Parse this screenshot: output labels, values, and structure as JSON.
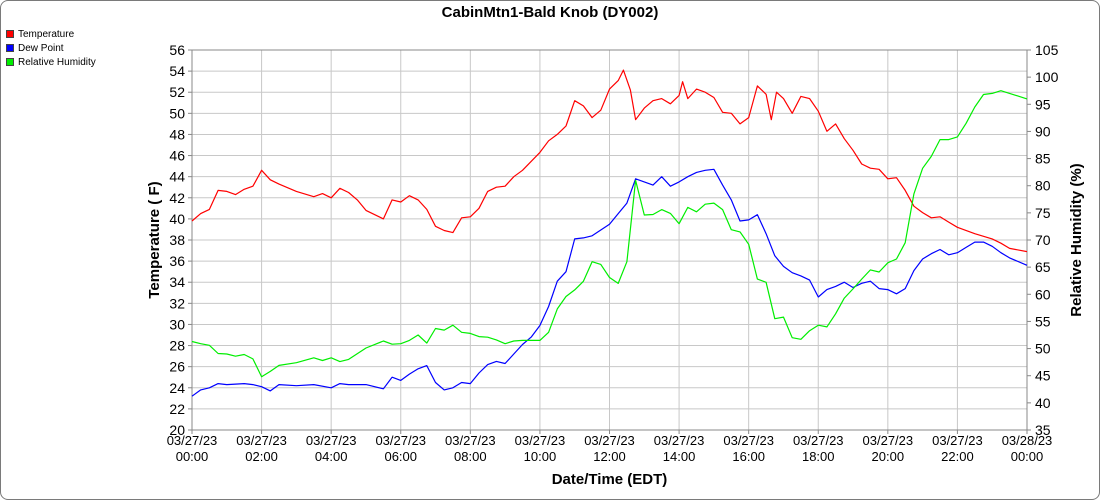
{
  "chart_data": {
    "type": "line",
    "title": "CabinMtn1-Bald Knob (DY002)",
    "xlabel": "Date/Time (EDT)",
    "ylabel_left": "Temperature ( F)",
    "ylabel_right": "Relative Humidity (%)",
    "x_unit": "hours since 03/27/23 00:00 (EDT)",
    "xlim": [
      0,
      24
    ],
    "ylim_left": [
      20,
      56
    ],
    "ylim_right": [
      35,
      105
    ],
    "grid": true,
    "legend_position": "top-left",
    "x_tick_labels": [
      {
        "date": "03/27/23",
        "time": "00:00"
      },
      {
        "date": "03/27/23",
        "time": "02:00"
      },
      {
        "date": "03/27/23",
        "time": "04:00"
      },
      {
        "date": "03/27/23",
        "time": "06:00"
      },
      {
        "date": "03/27/23",
        "time": "08:00"
      },
      {
        "date": "03/27/23",
        "time": "10:00"
      },
      {
        "date": "03/27/23",
        "time": "12:00"
      },
      {
        "date": "03/27/23",
        "time": "14:00"
      },
      {
        "date": "03/27/23",
        "time": "16:00"
      },
      {
        "date": "03/27/23",
        "time": "18:00"
      },
      {
        "date": "03/27/23",
        "time": "20:00"
      },
      {
        "date": "03/27/23",
        "time": "22:00"
      },
      {
        "date": "03/28/23",
        "time": "00:00"
      }
    ],
    "y_left_ticks": [
      20,
      22,
      24,
      26,
      28,
      30,
      32,
      34,
      36,
      38,
      40,
      42,
      44,
      46,
      48,
      50,
      52,
      54,
      56
    ],
    "y_right_ticks": [
      35,
      40,
      45,
      50,
      55,
      60,
      65,
      70,
      75,
      80,
      85,
      90,
      95,
      100,
      105
    ],
    "series": [
      {
        "name": "Temperature",
        "axis": "left",
        "color": "#ff0000",
        "points": [
          [
            0,
            39.8
          ],
          [
            0.25,
            40.5
          ],
          [
            0.5,
            40.9
          ],
          [
            0.75,
            42.7
          ],
          [
            1,
            42.6
          ],
          [
            1.25,
            42.3
          ],
          [
            1.5,
            42.8
          ],
          [
            1.75,
            43.1
          ],
          [
            2,
            44.6
          ],
          [
            2.25,
            43.7
          ],
          [
            2.5,
            43.3
          ],
          [
            3,
            42.6
          ],
          [
            3.5,
            42.1
          ],
          [
            3.75,
            42.4
          ],
          [
            4,
            42.0
          ],
          [
            4.25,
            42.9
          ],
          [
            4.5,
            42.5
          ],
          [
            4.75,
            41.8
          ],
          [
            5,
            40.8
          ],
          [
            5.5,
            40.0
          ],
          [
            5.75,
            41.8
          ],
          [
            6,
            41.6
          ],
          [
            6.25,
            42.2
          ],
          [
            6.5,
            41.8
          ],
          [
            6.75,
            40.9
          ],
          [
            7,
            39.3
          ],
          [
            7.25,
            38.9
          ],
          [
            7.5,
            38.7
          ],
          [
            7.75,
            40.1
          ],
          [
            8,
            40.2
          ],
          [
            8.25,
            41.0
          ],
          [
            8.5,
            42.6
          ],
          [
            8.75,
            43.0
          ],
          [
            9,
            43.1
          ],
          [
            9.25,
            44.0
          ],
          [
            9.5,
            44.6
          ],
          [
            10,
            46.3
          ],
          [
            10.25,
            47.4
          ],
          [
            10.5,
            48.0
          ],
          [
            10.75,
            48.8
          ],
          [
            11,
            51.2
          ],
          [
            11.25,
            50.7
          ],
          [
            11.5,
            49.6
          ],
          [
            11.75,
            50.3
          ],
          [
            12,
            52.3
          ],
          [
            12.25,
            53.1
          ],
          [
            12.4,
            54.1
          ],
          [
            12.6,
            52.2
          ],
          [
            12.75,
            49.4
          ],
          [
            13,
            50.5
          ],
          [
            13.25,
            51.2
          ],
          [
            13.5,
            51.4
          ],
          [
            13.75,
            50.9
          ],
          [
            14,
            51.7
          ],
          [
            14.1,
            53.0
          ],
          [
            14.25,
            51.4
          ],
          [
            14.5,
            52.3
          ],
          [
            14.75,
            52.0
          ],
          [
            15,
            51.5
          ],
          [
            15.25,
            50.1
          ],
          [
            15.5,
            50.0
          ],
          [
            15.75,
            49.0
          ],
          [
            16,
            49.6
          ],
          [
            16.25,
            52.6
          ],
          [
            16.5,
            51.8
          ],
          [
            16.65,
            49.4
          ],
          [
            16.8,
            52.0
          ],
          [
            17,
            51.4
          ],
          [
            17.25,
            50.0
          ],
          [
            17.5,
            51.6
          ],
          [
            17.75,
            51.4
          ],
          [
            18,
            50.2
          ],
          [
            18.25,
            48.3
          ],
          [
            18.5,
            49.0
          ],
          [
            18.75,
            47.6
          ],
          [
            19,
            46.5
          ],
          [
            19.25,
            45.2
          ],
          [
            19.5,
            44.8
          ],
          [
            19.75,
            44.7
          ],
          [
            20,
            43.8
          ],
          [
            20.25,
            43.9
          ],
          [
            20.5,
            42.7
          ],
          [
            20.75,
            41.2
          ],
          [
            21,
            40.6
          ],
          [
            21.25,
            40.1
          ],
          [
            21.5,
            40.2
          ],
          [
            21.75,
            39.7
          ],
          [
            22,
            39.2
          ],
          [
            22.5,
            38.6
          ],
          [
            23,
            38.1
          ],
          [
            23.25,
            37.7
          ],
          [
            23.5,
            37.2
          ],
          [
            24,
            36.9
          ]
        ]
      },
      {
        "name": "Dew Point",
        "axis": "left",
        "color": "#0000ff",
        "points": [
          [
            0,
            23.2
          ],
          [
            0.25,
            23.8
          ],
          [
            0.5,
            24.0
          ],
          [
            0.75,
            24.4
          ],
          [
            1,
            24.3
          ],
          [
            1.5,
            24.4
          ],
          [
            1.75,
            24.3
          ],
          [
            2,
            24.1
          ],
          [
            2.25,
            23.7
          ],
          [
            2.5,
            24.3
          ],
          [
            3,
            24.2
          ],
          [
            3.5,
            24.3
          ],
          [
            4,
            24.0
          ],
          [
            4.25,
            24.4
          ],
          [
            4.5,
            24.3
          ],
          [
            5,
            24.3
          ],
          [
            5.5,
            23.9
          ],
          [
            5.75,
            25.0
          ],
          [
            6,
            24.7
          ],
          [
            6.25,
            25.3
          ],
          [
            6.5,
            25.8
          ],
          [
            6.75,
            26.1
          ],
          [
            7,
            24.5
          ],
          [
            7.25,
            23.8
          ],
          [
            7.5,
            24.0
          ],
          [
            7.75,
            24.5
          ],
          [
            8,
            24.4
          ],
          [
            8.25,
            25.4
          ],
          [
            8.5,
            26.2
          ],
          [
            8.75,
            26.5
          ],
          [
            9,
            26.3
          ],
          [
            9.25,
            27.2
          ],
          [
            9.5,
            28.1
          ],
          [
            9.75,
            28.8
          ],
          [
            10,
            29.9
          ],
          [
            10.25,
            31.7
          ],
          [
            10.5,
            34.1
          ],
          [
            10.75,
            35.0
          ],
          [
            11,
            38.1
          ],
          [
            11.25,
            38.2
          ],
          [
            11.5,
            38.4
          ],
          [
            12,
            39.5
          ],
          [
            12.25,
            40.5
          ],
          [
            12.5,
            41.5
          ],
          [
            12.75,
            43.8
          ],
          [
            13,
            43.5
          ],
          [
            13.25,
            43.2
          ],
          [
            13.5,
            44.0
          ],
          [
            13.75,
            43.1
          ],
          [
            14,
            43.5
          ],
          [
            14.25,
            44.0
          ],
          [
            14.5,
            44.4
          ],
          [
            14.75,
            44.6
          ],
          [
            15,
            44.7
          ],
          [
            15.25,
            43.2
          ],
          [
            15.5,
            41.8
          ],
          [
            15.75,
            39.8
          ],
          [
            16,
            39.9
          ],
          [
            16.25,
            40.4
          ],
          [
            16.5,
            38.6
          ],
          [
            16.75,
            36.5
          ],
          [
            17,
            35.5
          ],
          [
            17.25,
            34.9
          ],
          [
            17.5,
            34.6
          ],
          [
            17.75,
            34.2
          ],
          [
            18,
            32.6
          ],
          [
            18.25,
            33.3
          ],
          [
            18.5,
            33.6
          ],
          [
            18.75,
            34.0
          ],
          [
            19,
            33.5
          ],
          [
            19.25,
            33.9
          ],
          [
            19.5,
            34.1
          ],
          [
            19.75,
            33.4
          ],
          [
            20,
            33.3
          ],
          [
            20.25,
            32.9
          ],
          [
            20.5,
            33.4
          ],
          [
            20.75,
            35.1
          ],
          [
            21,
            36.2
          ],
          [
            21.25,
            36.7
          ],
          [
            21.5,
            37.1
          ],
          [
            21.75,
            36.6
          ],
          [
            22,
            36.8
          ],
          [
            22.25,
            37.3
          ],
          [
            22.5,
            37.8
          ],
          [
            22.75,
            37.8
          ],
          [
            23,
            37.4
          ],
          [
            23.25,
            36.8
          ],
          [
            23.5,
            36.3
          ],
          [
            24,
            35.6
          ]
        ]
      },
      {
        "name": "Relative Humidity",
        "axis": "right",
        "color": "#00ee00",
        "points": [
          [
            0,
            51.3
          ],
          [
            0.25,
            50.9
          ],
          [
            0.5,
            50.6
          ],
          [
            0.75,
            49.1
          ],
          [
            1,
            49.0
          ],
          [
            1.25,
            48.6
          ],
          [
            1.5,
            48.9
          ],
          [
            1.75,
            48.1
          ],
          [
            2,
            44.8
          ],
          [
            2.25,
            45.8
          ],
          [
            2.5,
            46.9
          ],
          [
            3,
            47.4
          ],
          [
            3.5,
            48.3
          ],
          [
            3.75,
            47.8
          ],
          [
            4,
            48.3
          ],
          [
            4.25,
            47.6
          ],
          [
            4.5,
            48.0
          ],
          [
            5,
            50.1
          ],
          [
            5.5,
            51.4
          ],
          [
            5.75,
            50.8
          ],
          [
            6,
            50.9
          ],
          [
            6.25,
            51.5
          ],
          [
            6.5,
            52.5
          ],
          [
            6.75,
            51.0
          ],
          [
            7,
            53.7
          ],
          [
            7.25,
            53.4
          ],
          [
            7.5,
            54.3
          ],
          [
            7.75,
            53.0
          ],
          [
            8,
            52.8
          ],
          [
            8.25,
            52.2
          ],
          [
            8.5,
            52.1
          ],
          [
            8.75,
            51.6
          ],
          [
            9,
            50.9
          ],
          [
            9.25,
            51.4
          ],
          [
            9.5,
            51.5
          ],
          [
            10,
            51.5
          ],
          [
            10.25,
            53.0
          ],
          [
            10.5,
            57.3
          ],
          [
            10.75,
            59.6
          ],
          [
            11,
            60.8
          ],
          [
            11.25,
            62.4
          ],
          [
            11.5,
            66.0
          ],
          [
            11.75,
            65.5
          ],
          [
            12,
            63.1
          ],
          [
            12.25,
            62.0
          ],
          [
            12.5,
            66.0
          ],
          [
            12.75,
            81.0
          ],
          [
            13,
            74.6
          ],
          [
            13.25,
            74.7
          ],
          [
            13.5,
            75.6
          ],
          [
            13.75,
            74.9
          ],
          [
            14,
            73.0
          ],
          [
            14.25,
            76.0
          ],
          [
            14.5,
            75.2
          ],
          [
            14.75,
            76.6
          ],
          [
            15,
            76.8
          ],
          [
            15.25,
            75.6
          ],
          [
            15.5,
            71.9
          ],
          [
            15.75,
            71.5
          ],
          [
            16,
            69.2
          ],
          [
            16.25,
            62.8
          ],
          [
            16.5,
            62.2
          ],
          [
            16.75,
            55.5
          ],
          [
            17,
            55.8
          ],
          [
            17.25,
            52.0
          ],
          [
            17.5,
            51.7
          ],
          [
            17.75,
            53.3
          ],
          [
            18,
            54.3
          ],
          [
            18.25,
            54.0
          ],
          [
            18.5,
            56.4
          ],
          [
            18.75,
            59.3
          ],
          [
            19,
            61.0
          ],
          [
            19.25,
            62.8
          ],
          [
            19.5,
            64.5
          ],
          [
            19.75,
            64.1
          ],
          [
            20,
            65.8
          ],
          [
            20.25,
            66.5
          ],
          [
            20.5,
            69.5
          ],
          [
            20.75,
            78.5
          ],
          [
            21,
            83.2
          ],
          [
            21.25,
            85.4
          ],
          [
            21.5,
            88.5
          ],
          [
            21.75,
            88.5
          ],
          [
            22,
            89.0
          ],
          [
            22.25,
            91.5
          ],
          [
            22.5,
            94.5
          ],
          [
            22.75,
            96.8
          ],
          [
            23,
            97.0
          ],
          [
            23.25,
            97.5
          ],
          [
            23.5,
            97.0
          ],
          [
            24,
            96.0
          ]
        ]
      }
    ]
  }
}
